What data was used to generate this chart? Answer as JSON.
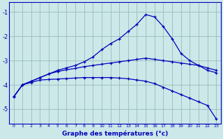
{
  "xlabel": "Graphe des températures (°c)",
  "bg_color": "#cce8e8",
  "line_color": "#0000bb",
  "grid_color": "#99bbbb",
  "xlim": [
    -0.5,
    23.5
  ],
  "ylim": [
    -5.6,
    -0.6
  ],
  "yticks": [
    -5,
    -4,
    -3,
    -2,
    -1
  ],
  "xticks": [
    0,
    1,
    2,
    3,
    4,
    5,
    6,
    7,
    8,
    9,
    10,
    11,
    12,
    13,
    14,
    15,
    16,
    17,
    18,
    19,
    20,
    21,
    22,
    23
  ],
  "hours": [
    0,
    1,
    2,
    3,
    4,
    5,
    6,
    7,
    8,
    9,
    10,
    11,
    12,
    13,
    14,
    15,
    16,
    17,
    18,
    19,
    20,
    21,
    22,
    23
  ],
  "curve1": [
    -4.5,
    -4.0,
    -3.85,
    -3.7,
    -3.55,
    -3.4,
    -3.3,
    -3.2,
    -3.05,
    -2.85,
    -2.55,
    -2.3,
    -2.1,
    -1.8,
    -1.5,
    -1.1,
    -1.2,
    -1.6,
    -2.1,
    -2.7,
    -3.0,
    -3.2,
    -3.4,
    -3.5
  ],
  "curve2": [
    -4.5,
    -4.0,
    -3.85,
    -3.7,
    -3.55,
    -3.45,
    -3.38,
    -3.32,
    -3.25,
    -3.2,
    -3.15,
    -3.1,
    -3.05,
    -3.0,
    -2.95,
    -2.9,
    -2.95,
    -3.0,
    -3.05,
    -3.1,
    -3.15,
    -3.2,
    -3.3,
    -3.4
  ],
  "curve3": [
    -4.5,
    -4.0,
    -3.9,
    -3.8,
    -3.78,
    -3.76,
    -3.74,
    -3.72,
    -3.7,
    -3.7,
    -3.7,
    -3.7,
    -3.72,
    -3.75,
    -3.8,
    -3.85,
    -3.95,
    -4.1,
    -4.25,
    -4.4,
    -4.55,
    -4.7,
    -4.85,
    -5.4
  ]
}
